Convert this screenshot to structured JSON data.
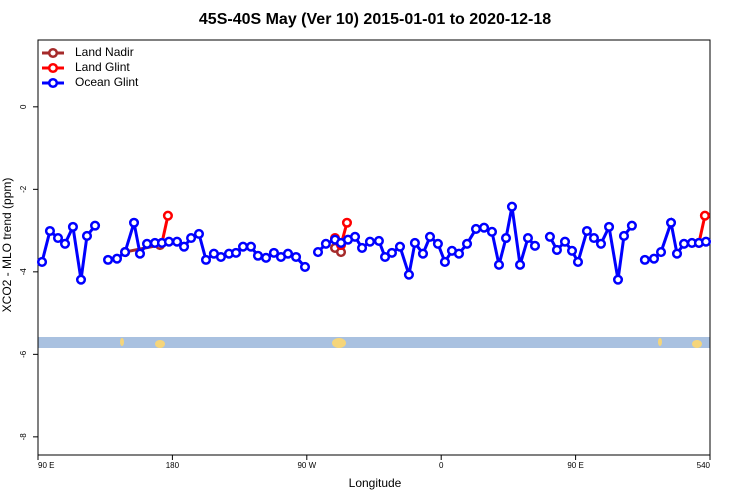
{
  "chart_data": {
    "type": "line",
    "title": "45S-40S May (Ver 10)   2015-01-01 to 2020-12-18",
    "xlabel": "Longitude",
    "ylabel": "XCO2 - MLO trend (ppm)",
    "xlim": [
      90,
      540
    ],
    "ylim": [
      -8.44,
      1.62
    ],
    "xticks": [
      {
        "value": 90,
        "label": "90 E"
      },
      180,
      {
        "value": 270,
        "label": "90 W"
      },
      {
        "value": 360,
        "label": "0"
      },
      {
        "value": 450,
        "label": "90 E"
      },
      540
    ],
    "yticks": [
      0,
      -2,
      -4,
      -6,
      -8
    ],
    "legend": "upper left",
    "series": [
      {
        "name": "Land Nadir",
        "color": "#a52a2a",
        "x": [
          148.3,
          171.7,
          230,
          288.9,
          292.9
        ],
        "values": [
          -3.52,
          -3.35,
          null,
          -3.42,
          -3.52
        ]
      },
      {
        "name": "Land Glint",
        "color": "#ff0000",
        "x": [
          173.0,
          177.0,
          230,
          288.9,
          292.9,
          296.9,
          400,
          532.6,
          536.6
        ],
        "values": [
          -3.3,
          -2.64,
          null,
          -3.18,
          -3.35,
          -2.81,
          null,
          -3.3,
          -2.64
        ]
      },
      {
        "name": "Ocean Glint",
        "color": "#0000ff",
        "x": [
          92.7,
          98.0,
          103.4,
          108.1,
          113.4,
          118.8,
          122.8,
          128.2,
          132.5,
          136.9,
          142.9,
          148.3,
          154.3,
          158.3,
          163.0,
          168.3,
          173.0,
          177.7,
          183.1,
          187.8,
          192.5,
          197.8,
          202.5,
          207.8,
          212.5,
          217.9,
          222.6,
          227.3,
          232.6,
          237.3,
          242.7,
          248.0,
          252.7,
          257.4,
          262.8,
          268.8,
          273.0,
          277.5,
          282.8,
          288.9,
          292.9,
          297.6,
          302.3,
          307.0,
          312.3,
          318.3,
          322.4,
          327.0,
          332.4,
          338.4,
          342.4,
          347.8,
          352.5,
          357.8,
          362.5,
          367.2,
          371.9,
          377.3,
          383.3,
          388.7,
          394.0,
          398.7,
          403.4,
          407.4,
          412.8,
          418.1,
          422.8,
          427.8,
          432.8,
          437.5,
          442.9,
          447.6,
          451.6,
          457.6,
          462.3,
          467.0,
          472.4,
          478.4,
          482.4,
          487.7,
          492.0,
          496.4,
          502.5,
          507.2,
          513.9,
          517.9,
          522.6,
          527.9,
          532.6,
          537.3
        ],
        "values": [
          -3.76,
          -3.01,
          -3.18,
          -3.32,
          -2.91,
          -4.19,
          -3.13,
          -2.88,
          null,
          -3.71,
          -3.68,
          -3.52,
          -2.81,
          -3.56,
          -3.32,
          -3.3,
          -3.3,
          -3.27,
          -3.27,
          -3.39,
          -3.18,
          -3.08,
          -3.71,
          -3.56,
          -3.64,
          -3.56,
          -3.54,
          -3.39,
          -3.39,
          -3.61,
          -3.66,
          -3.54,
          -3.64,
          -3.56,
          -3.64,
          -3.88,
          null,
          -3.52,
          -3.32,
          -3.22,
          -3.3,
          -3.22,
          -3.15,
          -3.42,
          -3.27,
          -3.25,
          -3.64,
          -3.54,
          -3.39,
          -4.07,
          -3.3,
          -3.56,
          -3.15,
          -3.32,
          -3.76,
          -3.49,
          -3.56,
          -3.32,
          -2.96,
          -2.93,
          -3.03,
          -3.83,
          -3.18,
          -2.42,
          -3.83,
          -3.18,
          -3.37,
          null,
          -3.15,
          -3.47,
          -3.27,
          -3.49,
          -3.76,
          -3.01,
          -3.18,
          -3.32,
          -2.91,
          -4.19,
          -3.13,
          -2.88,
          null,
          -3.71,
          -3.68,
          -3.52,
          -2.81,
          -3.56,
          -3.32,
          -3.3,
          -3.3,
          -3.27
        ]
      }
    ]
  }
}
